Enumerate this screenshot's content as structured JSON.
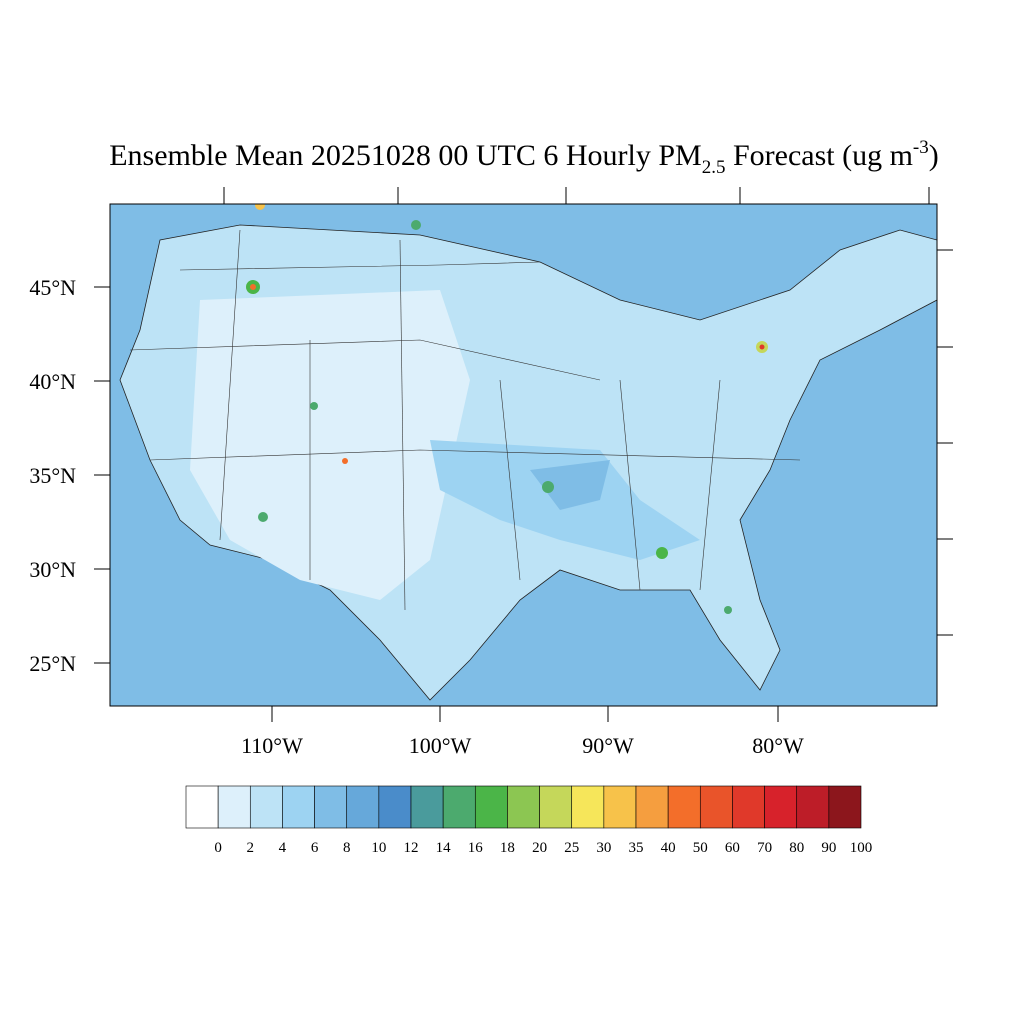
{
  "map": {
    "title": {
      "main": "Ensemble Mean 20251028 00 UTC 6 Hourly PM",
      "subscript": "2.5",
      "after": " Forecast (ug m",
      "superscript": "-3",
      "close": ")"
    },
    "lat_labels": [
      "45°N",
      "40°N",
      "35°N",
      "30°N",
      "25°N"
    ],
    "lon_labels": [
      "110°W",
      "100°W",
      "90°W",
      "80°W"
    ],
    "colorbar": {
      "levels": [
        0,
        2,
        4,
        6,
        8,
        10,
        12,
        14,
        16,
        18,
        20,
        25,
        30,
        35,
        40,
        50,
        60,
        70,
        80,
        90,
        100
      ],
      "colors": [
        "#ffffff",
        "#ddf0fb",
        "#bde3f6",
        "#9dd3f2",
        "#7fbde6",
        "#66a8da",
        "#4a8cca",
        "#4a9b9c",
        "#4caa6e",
        "#4bb548",
        "#8cc652",
        "#c5d75a",
        "#f6e65a",
        "#f7c24a",
        "#f59e3f",
        "#f36e2a",
        "#e9542a",
        "#e0392a",
        "#d7222b",
        "#bd1d28",
        "#8c161c"
      ]
    }
  }
}
